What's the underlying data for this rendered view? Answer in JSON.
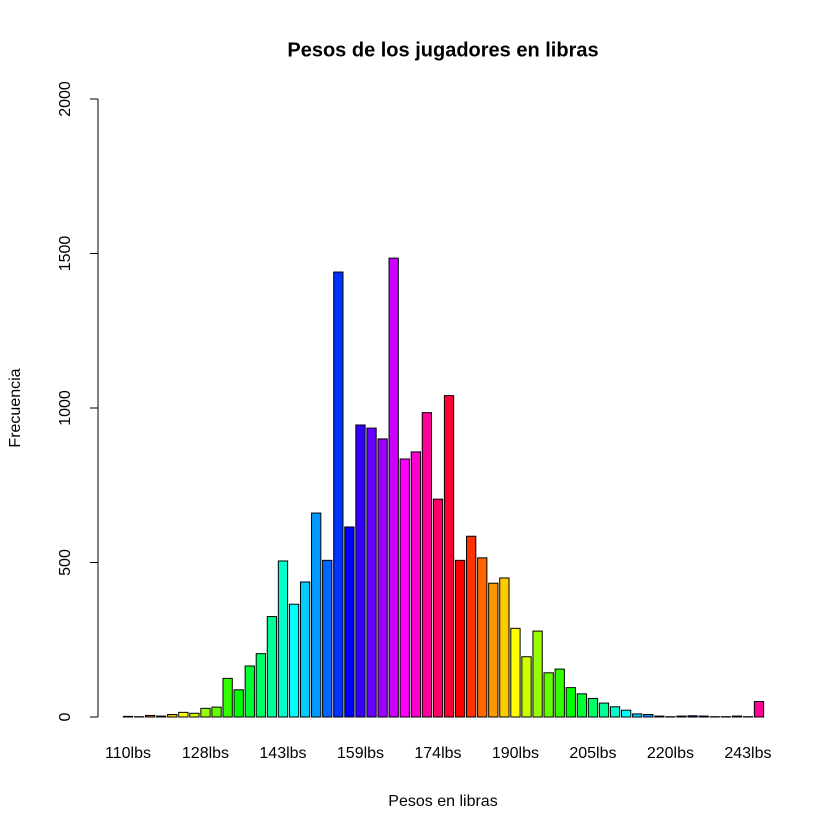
{
  "chart_data": {
    "type": "bar",
    "title": "Pesos de los jugadores en libras",
    "x_label": "Pesos en libras",
    "y_label": "Frecuencia",
    "categories": [
      "110lbs",
      null,
      null,
      null,
      null,
      null,
      null,
      "128lbs",
      null,
      null,
      null,
      null,
      null,
      null,
      "143lbs",
      null,
      null,
      null,
      null,
      null,
      null,
      "159lbs",
      null,
      null,
      null,
      null,
      null,
      null,
      "174lbs",
      null,
      null,
      null,
      null,
      null,
      null,
      "190lbs",
      null,
      null,
      null,
      null,
      null,
      null,
      "205lbs",
      null,
      null,
      null,
      null,
      null,
      null,
      "220lbs",
      null,
      null,
      null,
      null,
      null,
      null,
      "243lbs",
      null
    ],
    "values": [
      2,
      1,
      5,
      3,
      8,
      15,
      12,
      28,
      32,
      125,
      88,
      165,
      205,
      325,
      505,
      365,
      437,
      660,
      507,
      1440,
      615,
      945,
      935,
      900,
      1485,
      835,
      858,
      985,
      705,
      1040,
      507,
      585,
      515,
      433,
      450,
      287,
      195,
      278,
      143,
      155,
      95,
      75,
      60,
      45,
      33,
      22,
      10,
      8,
      3,
      1,
      3,
      4,
      3,
      1,
      1,
      3,
      1,
      50
    ],
    "colors": [
      "hsl(0,100%,50%)",
      "hsl(12,100%,50%)",
      "hsl(24,100%,50%)",
      "hsl(36,100%,50%)",
      "hsl(48,100%,50%)",
      "hsl(60,100%,50%)",
      "hsl(72,100%,50%)",
      "hsl(84,100%,50%)",
      "hsl(96,100%,50%)",
      "hsl(108,100%,50%)",
      "hsl(120,100%,50%)",
      "hsl(132,100%,50%)",
      "hsl(144,100%,50%)",
      "hsl(156,100%,50%)",
      "hsl(168,100%,50%)",
      "hsl(180,100%,50%)",
      "hsl(192,100%,50%)",
      "hsl(204,100%,50%)",
      "hsl(216,100%,50%)",
      "hsl(228,100%,50%)",
      "hsl(240,100%,50%)",
      "hsl(252,100%,50%)",
      "hsl(264,100%,50%)",
      "hsl(276,100%,50%)",
      "hsl(288,100%,50%)",
      "hsl(300,100%,50%)",
      "hsl(312,100%,50%)",
      "hsl(324,100%,50%)",
      "hsl(336,100%,50%)",
      "hsl(348,100%,50%)",
      "hsl(0,100%,50%)",
      "hsl(12,100%,50%)",
      "hsl(24,100%,50%)",
      "hsl(36,100%,50%)",
      "hsl(48,100%,50%)",
      "hsl(60,100%,50%)",
      "hsl(72,100%,50%)",
      "hsl(84,100%,50%)",
      "hsl(96,100%,50%)",
      "hsl(108,100%,50%)",
      "hsl(120,100%,50%)",
      "hsl(132,100%,50%)",
      "hsl(144,100%,50%)",
      "hsl(156,100%,50%)",
      "hsl(168,100%,50%)",
      "hsl(180,100%,50%)",
      "hsl(192,100%,50%)",
      "hsl(204,100%,50%)",
      "hsl(216,100%,50%)",
      "hsl(228,100%,50%)",
      "hsl(240,100%,50%)",
      "hsl(252,100%,50%)",
      "hsl(264,100%,50%)",
      "hsl(276,100%,50%)",
      "hsl(288,100%,50%)",
      "hsl(300,100%,50%)",
      "hsl(312,100%,50%)",
      "hsl(324,100%,50%)"
    ],
    "ylim": [
      0,
      2000
    ],
    "yticks": [
      0,
      500,
      1000,
      1500,
      2000
    ],
    "grid": false
  }
}
